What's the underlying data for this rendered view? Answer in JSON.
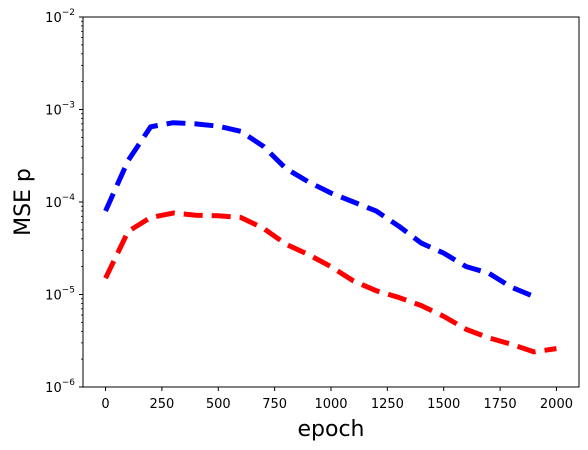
{
  "chart_data": {
    "type": "line",
    "title": "",
    "xlabel": "epoch",
    "ylabel": "MSE p",
    "yscale": "log",
    "xlim": [
      -100,
      2100
    ],
    "ylim": [
      1e-06,
      0.01
    ],
    "grid": false,
    "legend": "none",
    "x_ticks": [
      0,
      250,
      500,
      750,
      1000,
      1250,
      1500,
      1750,
      2000
    ],
    "x_tick_labels": [
      "0",
      "250",
      "500",
      "750",
      "1000",
      "1250",
      "1500",
      "1750",
      "2000"
    ],
    "y_ticks": [
      1e-06,
      1e-05,
      0.0001,
      0.001,
      0.01
    ],
    "y_tick_labels": [
      {
        "base": "10",
        "exp": "−6"
      },
      {
        "base": "10",
        "exp": "−5"
      },
      {
        "base": "10",
        "exp": "−4"
      },
      {
        "base": "10",
        "exp": "−3"
      },
      {
        "base": "10",
        "exp": "−2"
      }
    ],
    "series": [
      {
        "color": "#0000ff",
        "line_style": "dashed",
        "x": [
          0,
          100,
          200,
          300,
          400,
          500,
          600,
          700,
          800,
          900,
          1000,
          1100,
          1200,
          1300,
          1400,
          1500,
          1600,
          1700,
          1800,
          1900
        ],
        "y": [
          8e-05,
          0.00028,
          0.00065,
          0.00072,
          0.0007,
          0.00066,
          0.00058,
          0.0004,
          0.00023,
          0.000165,
          0.000125,
          0.0001,
          8e-05,
          5.5e-05,
          3.6e-05,
          2.8e-05,
          2e-05,
          1.7e-05,
          1.2e-05,
          9.5e-06
        ]
      },
      {
        "color": "#ff0000",
        "line_style": "dashed",
        "x": [
          0,
          100,
          200,
          300,
          400,
          500,
          600,
          700,
          800,
          900,
          1000,
          1100,
          1200,
          1300,
          1400,
          1500,
          1600,
          1700,
          1800,
          1900,
          2000
        ],
        "y": [
          1.5e-05,
          4.8e-05,
          6.8e-05,
          7.6e-05,
          7.2e-05,
          7.1e-05,
          6.8e-05,
          5.2e-05,
          3.5e-05,
          2.7e-05,
          2e-05,
          1.4e-05,
          1.1e-05,
          9.3e-06,
          7.6e-06,
          5.8e-06,
          4.2e-06,
          3.4e-06,
          2.9e-06,
          2.4e-06,
          2.6e-06
        ]
      }
    ]
  }
}
